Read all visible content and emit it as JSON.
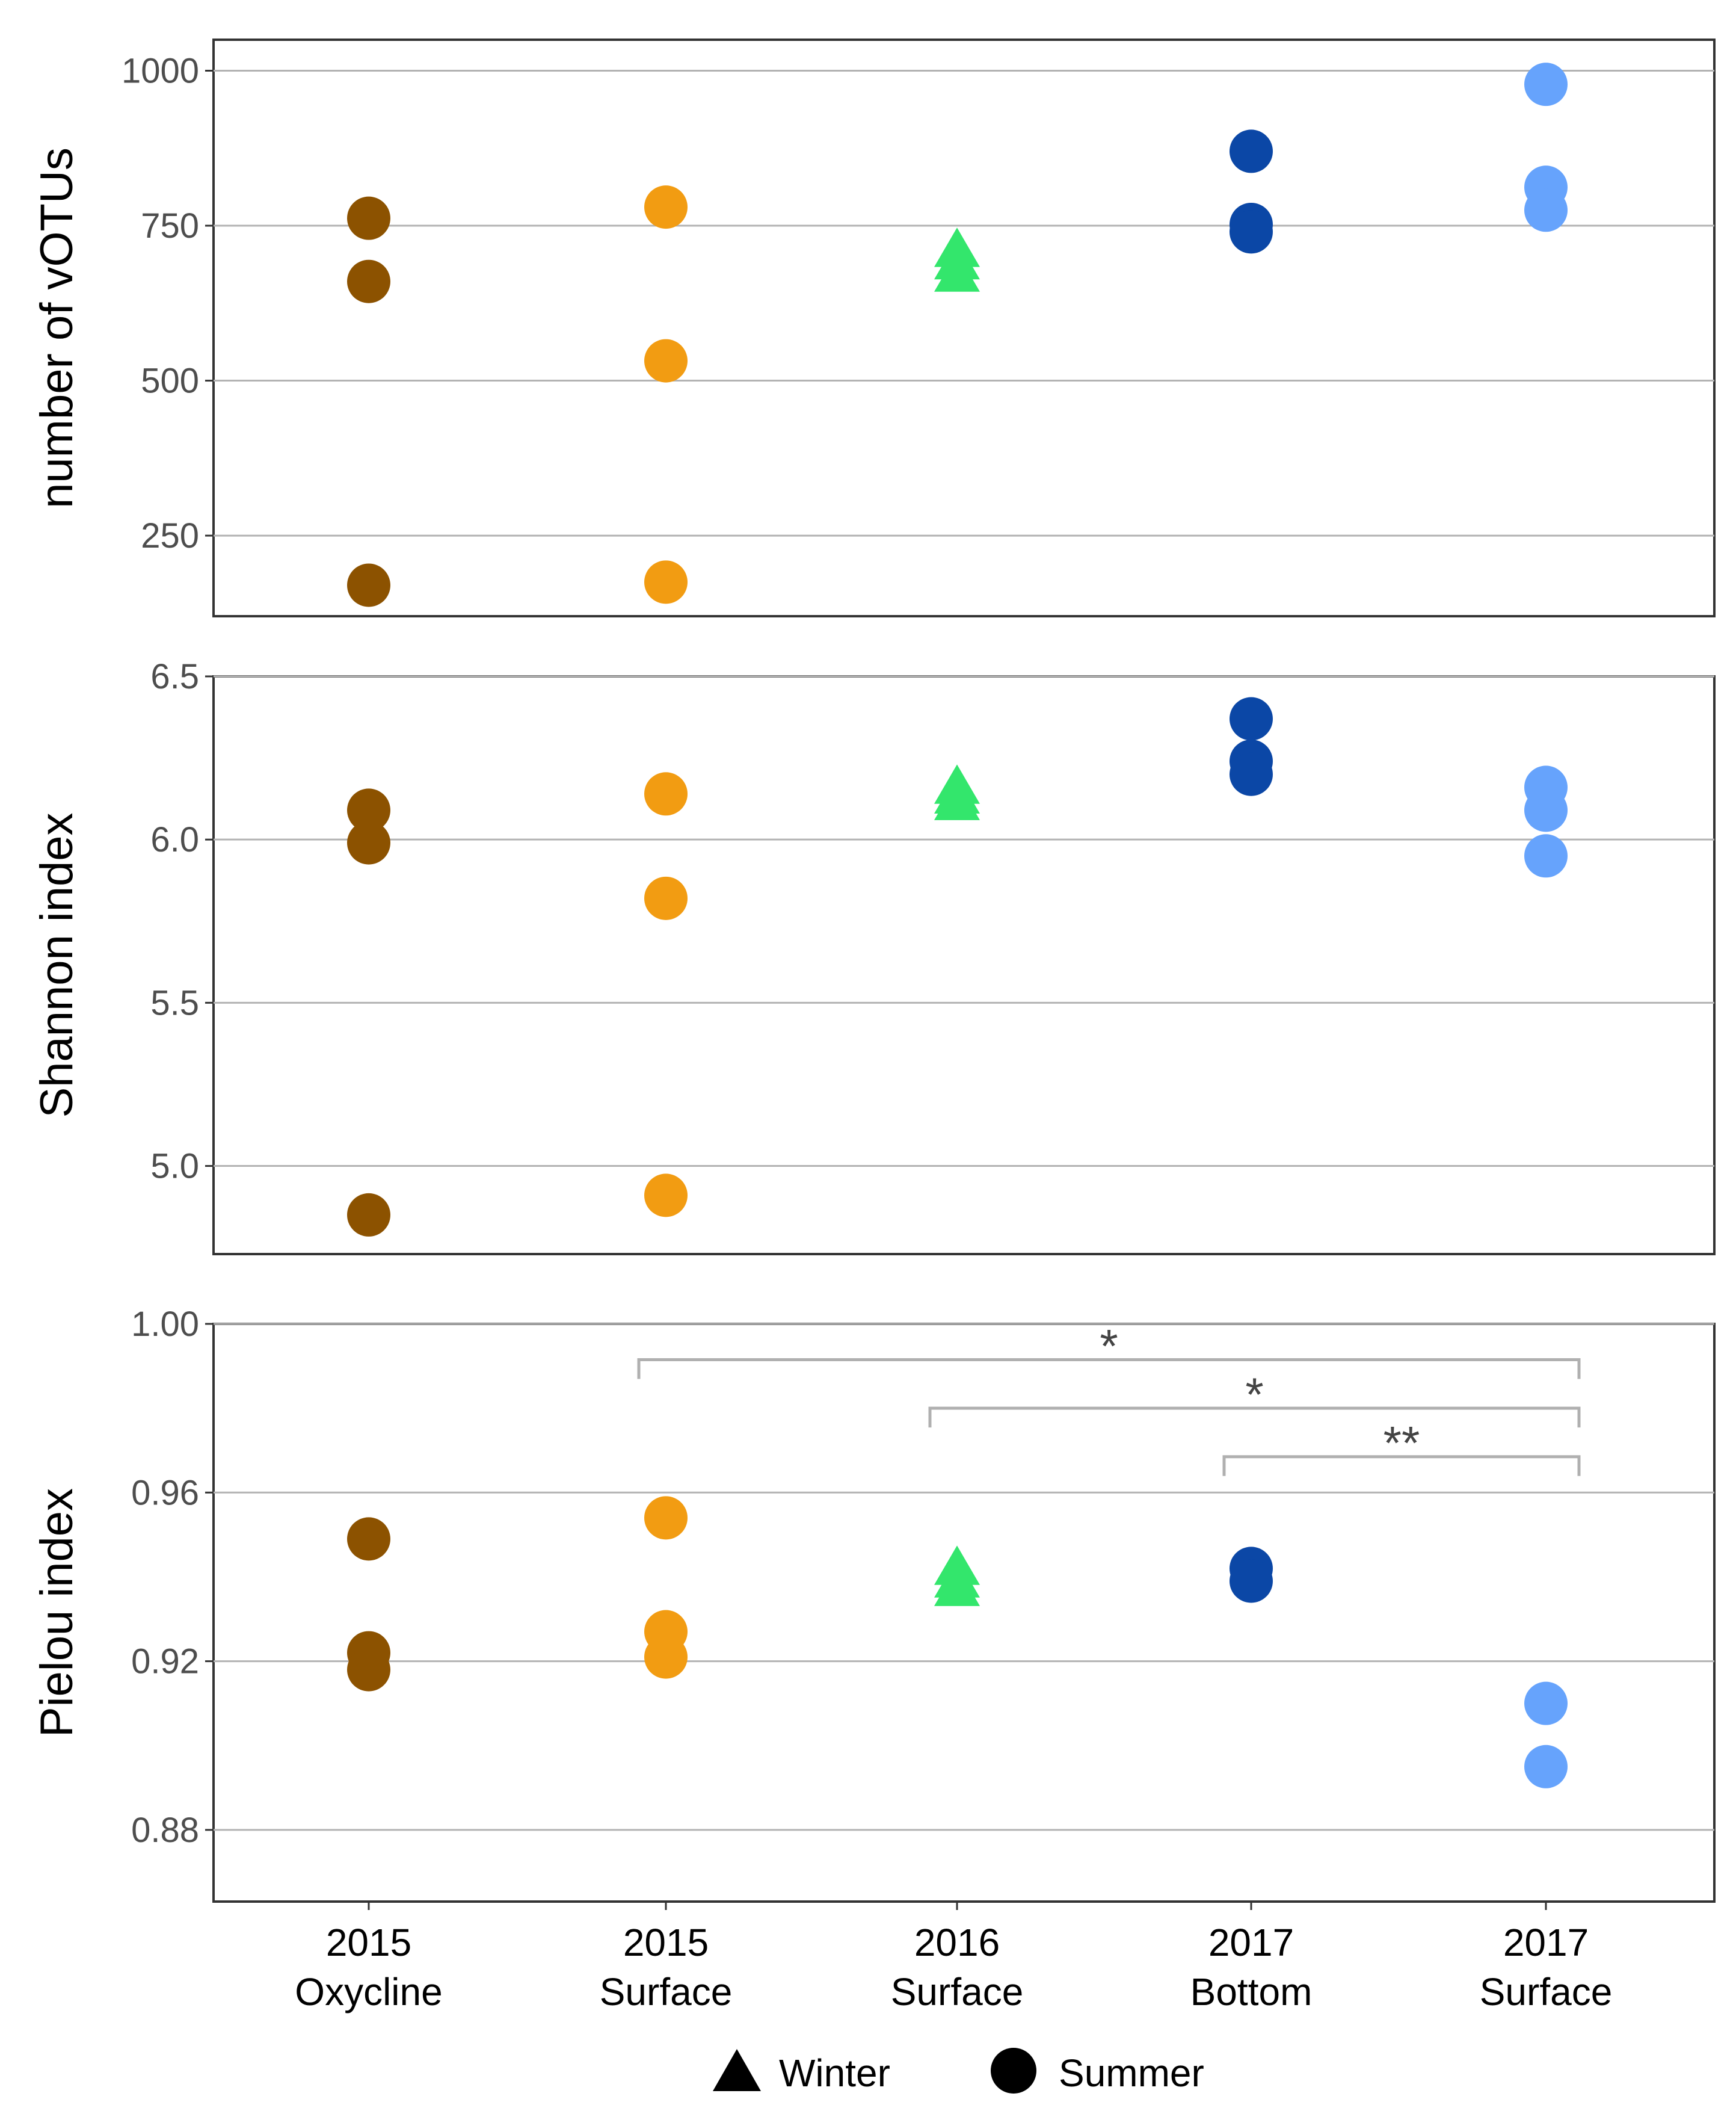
{
  "chart_data": [
    {
      "type": "scatter",
      "ylabel": "number of vOTUs",
      "yticks": [
        250,
        500,
        750,
        1000
      ],
      "tick_labels": [
        "250",
        "500",
        "750",
        "1000"
      ],
      "ylim": [
        120,
        1050
      ],
      "categories": [
        "2015 Oxycline",
        "2015 Surface",
        "2016 Surface",
        "2017 Bottom",
        "2017 Surface"
      ],
      "points": [
        {
          "group": 0,
          "season": "Summer",
          "values": [
            762,
            660,
            170
          ]
        },
        {
          "group": 1,
          "season": "Summer",
          "values": [
            780,
            532,
            175
          ]
        },
        {
          "group": 2,
          "season": "Winter",
          "values": [
            710,
            690,
            670
          ]
        },
        {
          "group": 3,
          "season": "Summer",
          "values": [
            870,
            752,
            740
          ]
        },
        {
          "group": 4,
          "season": "Summer",
          "values": [
            978,
            812,
            775
          ]
        }
      ]
    },
    {
      "type": "scatter",
      "ylabel": "Shannon index",
      "yticks": [
        5.0,
        5.5,
        6.0,
        6.5
      ],
      "tick_labels": [
        "5.0",
        "5.5",
        "6.0",
        "6.5"
      ],
      "ylim": [
        4.73,
        6.5
      ],
      "categories": [
        "2015 Oxycline",
        "2015 Surface",
        "2016 Surface",
        "2017 Bottom",
        "2017 Surface"
      ],
      "points": [
        {
          "group": 0,
          "season": "Summer",
          "values": [
            6.09,
            5.99,
            4.85
          ]
        },
        {
          "group": 1,
          "season": "Summer",
          "values": [
            6.14,
            5.82,
            4.91
          ]
        },
        {
          "group": 2,
          "season": "Winter",
          "values": [
            6.16,
            6.13,
            6.11
          ]
        },
        {
          "group": 3,
          "season": "Summer",
          "values": [
            6.37,
            6.24,
            6.2
          ]
        },
        {
          "group": 4,
          "season": "Summer",
          "values": [
            6.16,
            6.09,
            5.95
          ]
        }
      ]
    },
    {
      "type": "scatter",
      "ylabel": "Pielou index",
      "yticks": [
        0.88,
        0.92,
        0.96,
        1.0
      ],
      "tick_labels": [
        "0.88",
        "0.92",
        "0.96",
        "1.00"
      ],
      "ylim": [
        0.863,
        1.0
      ],
      "categories": [
        "2015 Oxycline",
        "2015 Surface",
        "2016 Surface",
        "2017 Bottom",
        "2017 Surface"
      ],
      "points": [
        {
          "group": 0,
          "season": "Summer",
          "values": [
            0.949,
            0.922,
            0.918
          ]
        },
        {
          "group": 1,
          "season": "Summer",
          "values": [
            0.954,
            0.927,
            0.921
          ]
        },
        {
          "group": 2,
          "season": "Winter",
          "values": [
            0.942,
            0.939,
            0.937
          ]
        },
        {
          "group": 3,
          "season": "Summer",
          "values": [
            0.942,
            0.939
          ]
        },
        {
          "group": 4,
          "season": "Summer",
          "values": [
            0.91,
            0.895
          ]
        }
      ],
      "significance": [
        {
          "from": 1,
          "to": 4,
          "label": "*",
          "y": 0.9915
        },
        {
          "from": 2,
          "to": 4,
          "label": "*",
          "y": 0.98
        },
        {
          "from": 3,
          "to": 4,
          "label": "**",
          "y": 0.9685
        }
      ]
    }
  ],
  "x_axis": {
    "labels": [
      [
        "2015",
        "Oxycline"
      ],
      [
        "2015",
        "Surface"
      ],
      [
        "2016",
        "Surface"
      ],
      [
        "2017",
        "Bottom"
      ],
      [
        "2017",
        "Surface"
      ]
    ]
  },
  "group_colors": [
    "#8c5200",
    "#f29c12",
    "#33e66c",
    "#0b47a6",
    "#66a3fc"
  ],
  "legend": [
    {
      "shape": "triangle",
      "label": "Winter"
    },
    {
      "shape": "circle",
      "label": "Summer"
    }
  ]
}
